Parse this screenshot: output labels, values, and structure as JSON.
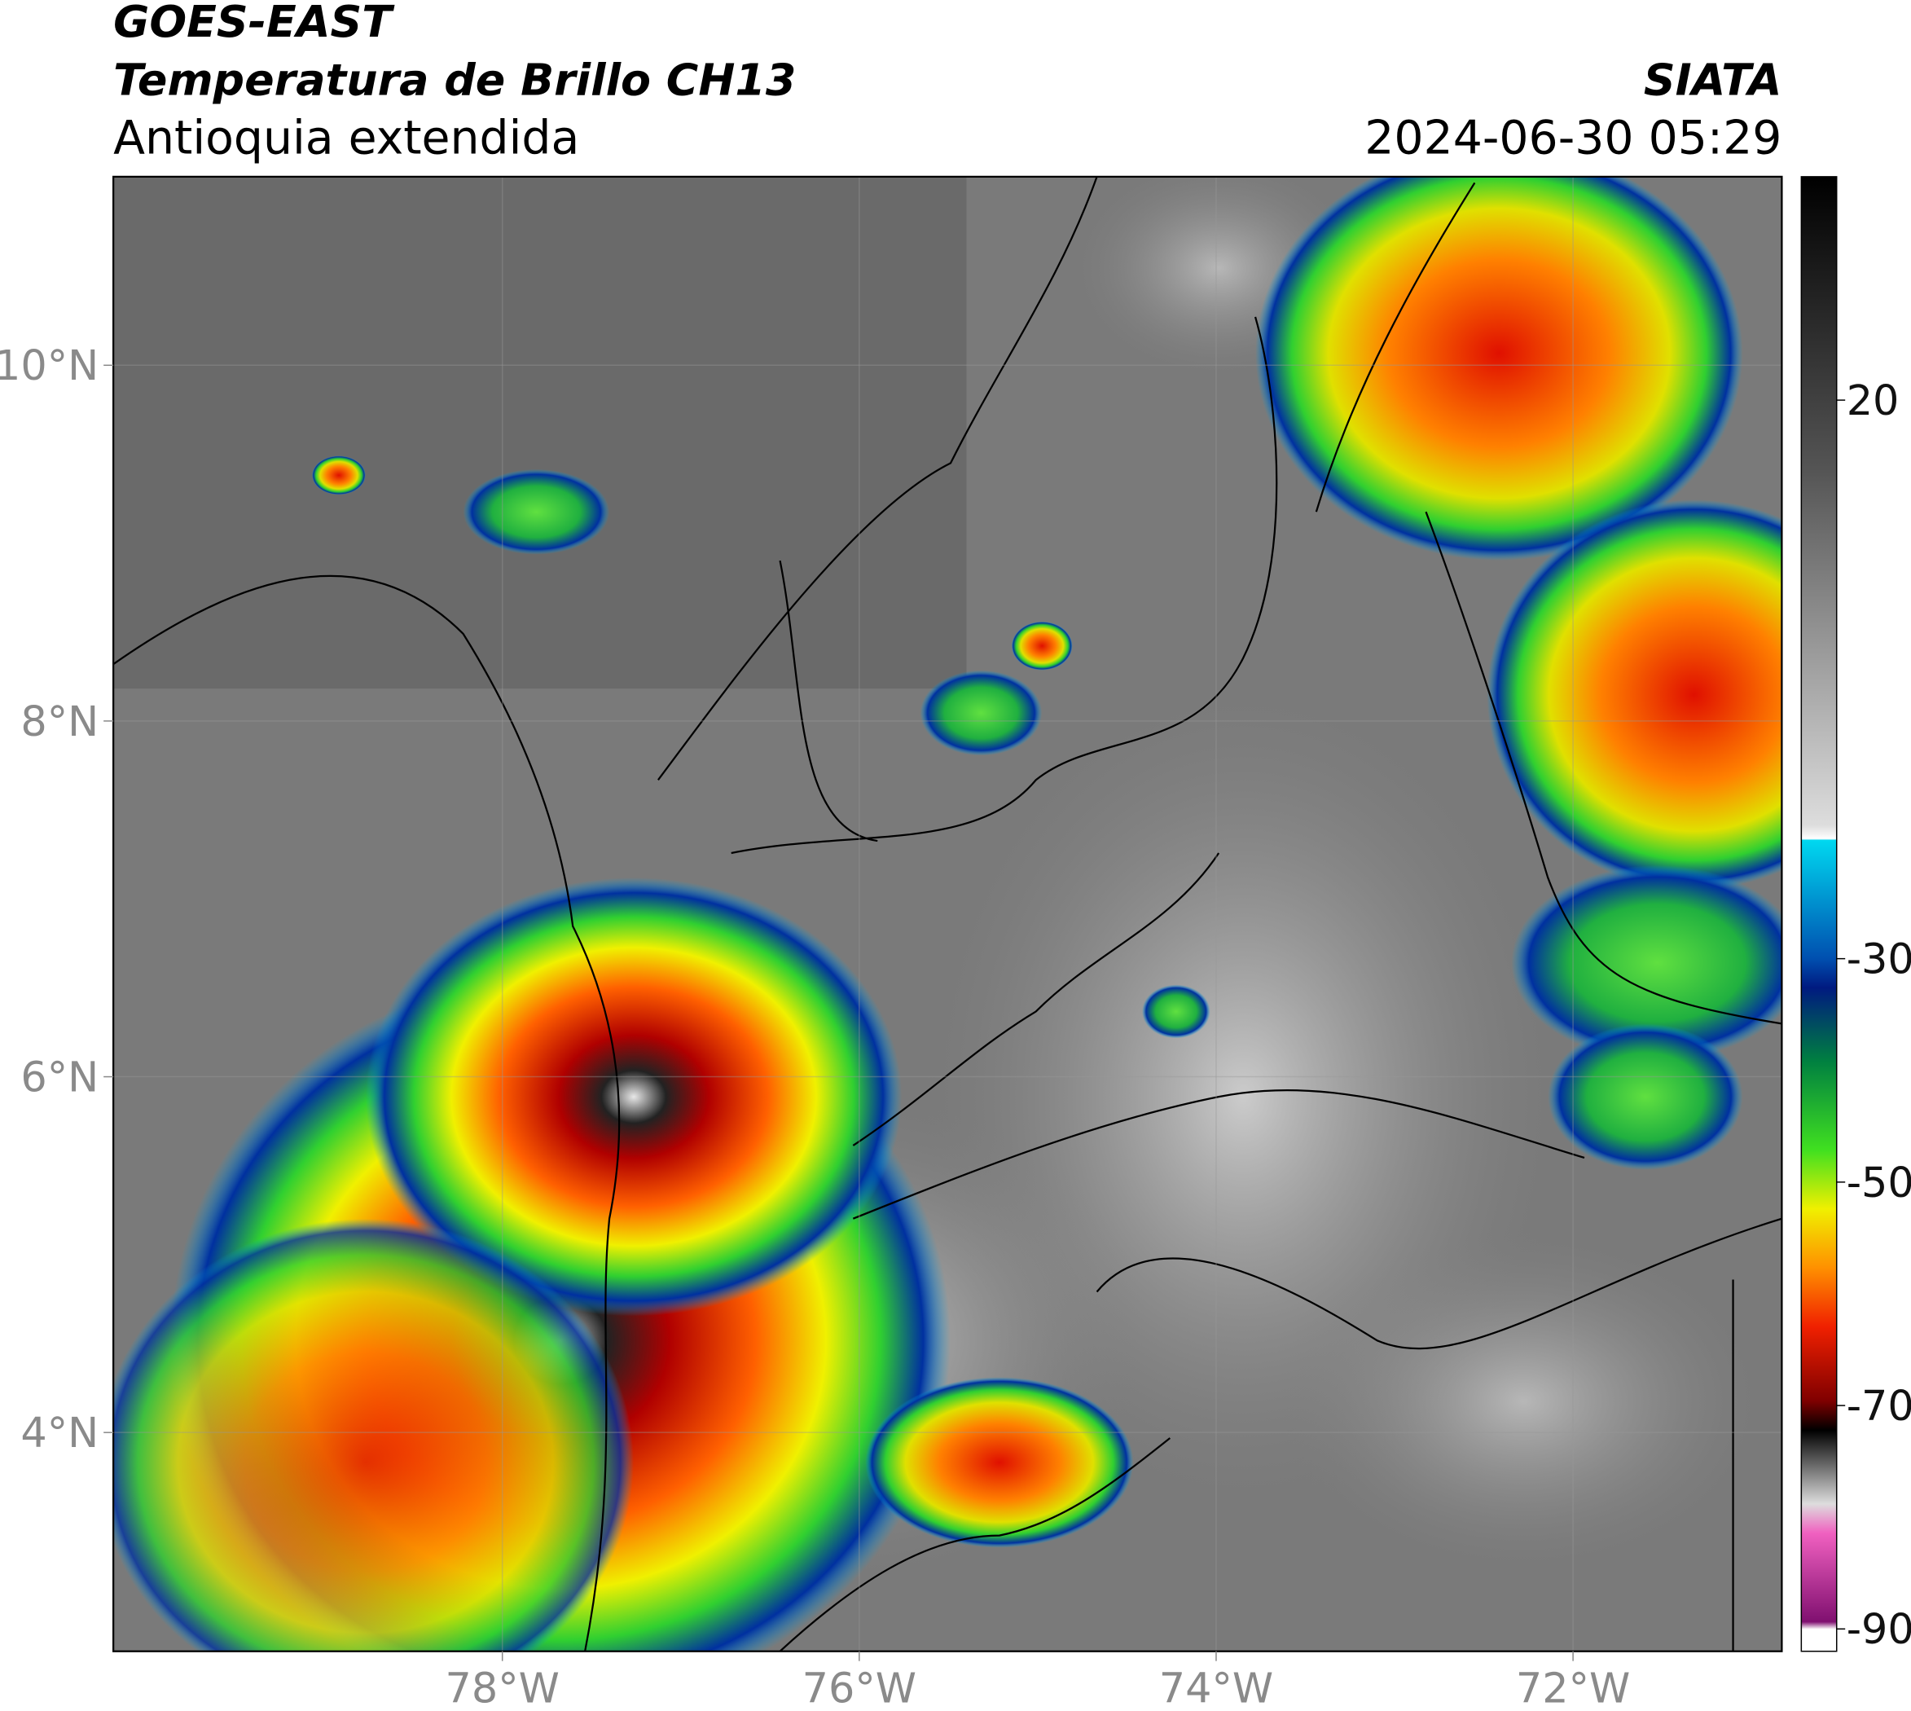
{
  "header": {
    "title": "GOES-EAST",
    "subtitle": "Temperatura de Brillo CH13",
    "region": "Antioquia extendida",
    "source": "SIATA",
    "datetime": "2024-06-30 05:29"
  },
  "map": {
    "xlim": [
      -80.18,
      -70.83
    ],
    "ylim": [
      2.77,
      11.06
    ],
    "grid": true,
    "xticks": [
      {
        "value": -78,
        "label": "78°W"
      },
      {
        "value": -76,
        "label": "76°W"
      },
      {
        "value": -74,
        "label": "74°W"
      },
      {
        "value": -72,
        "label": "72°W"
      }
    ],
    "yticks": [
      {
        "value": 10,
        "label": "10°N"
      },
      {
        "value": 8,
        "label": "8°N"
      },
      {
        "value": 6,
        "label": "6°N"
      },
      {
        "value": 4,
        "label": "4°N"
      }
    ]
  },
  "colorbar": {
    "lim": [
      -92,
      40
    ],
    "ticks": [
      20,
      -30,
      -50,
      -70,
      -90
    ]
  }
}
